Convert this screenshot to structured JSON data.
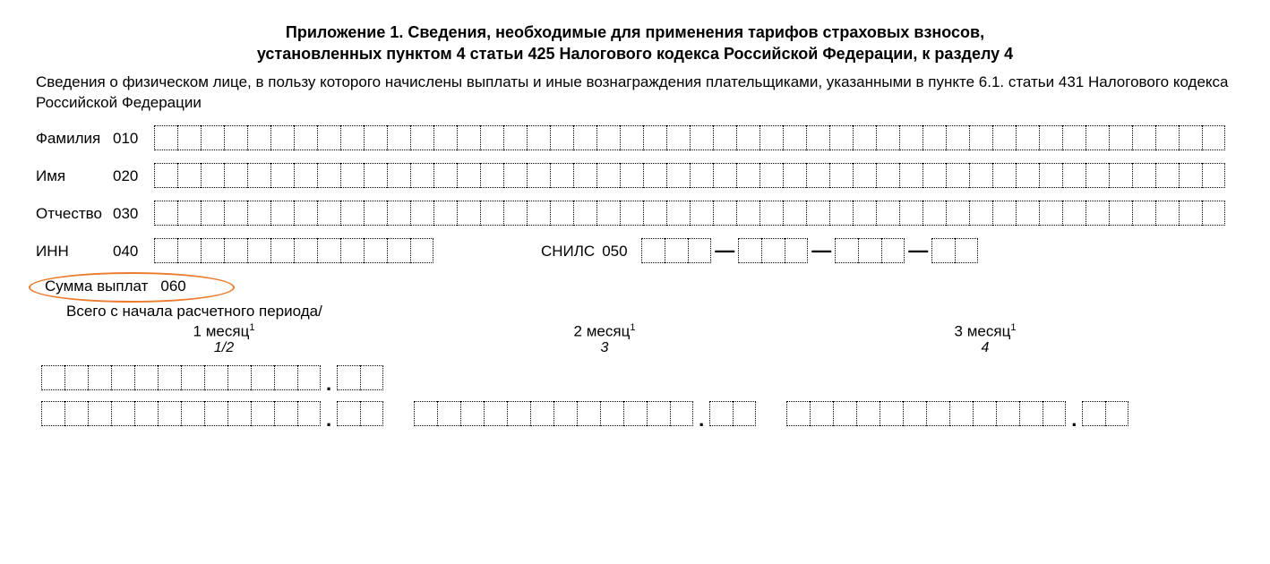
{
  "title_line1": "Приложение 1. Сведения, необходимые для применения тарифов страховых взносов,",
  "title_line2": "установленных пунктом 4 статьи 425 Налогового кодекса Российской Федерации, к разделу 4",
  "subtitle": "Сведения о физическом лице, в пользу которого начислены выплаты и иные вознаграждения плательщиками, указанными в пункте 6.1. статьи 431 Налогового кодекса Российской Федерации",
  "fields": {
    "surname": {
      "label": "Фамилия",
      "code": "010",
      "cells": 46
    },
    "name": {
      "label": "Имя",
      "code": "020",
      "cells": 46
    },
    "patronymic": {
      "label": "Отчество",
      "code": "030",
      "cells": 46
    },
    "inn": {
      "label": "ИНН",
      "code": "040",
      "cells": 12
    },
    "snils": {
      "label": "СНИЛС",
      "code": "050",
      "groups": [
        3,
        3,
        3,
        2
      ]
    },
    "sum": {
      "label": "Сумма выплат",
      "code": "060"
    }
  },
  "period_label": "Всего с начала расчетного периода/",
  "months": [
    {
      "name": "1 месяц",
      "sup": "1",
      "idx": "1/2"
    },
    {
      "name": "2 месяц",
      "sup": "1",
      "idx": "3"
    },
    {
      "name": "3 месяц",
      "sup": "1",
      "idx": "4"
    }
  ],
  "amounts": {
    "row1": [
      {
        "int_cells": 12,
        "dec_cells": 2
      }
    ],
    "row2": [
      {
        "int_cells": 12,
        "dec_cells": 2
      },
      {
        "int_cells": 12,
        "dec_cells": 2
      },
      {
        "int_cells": 12,
        "dec_cells": 2
      }
    ]
  },
  "colors": {
    "text": "#000000",
    "background": "#ffffff",
    "highlight": "#e97c2e"
  }
}
